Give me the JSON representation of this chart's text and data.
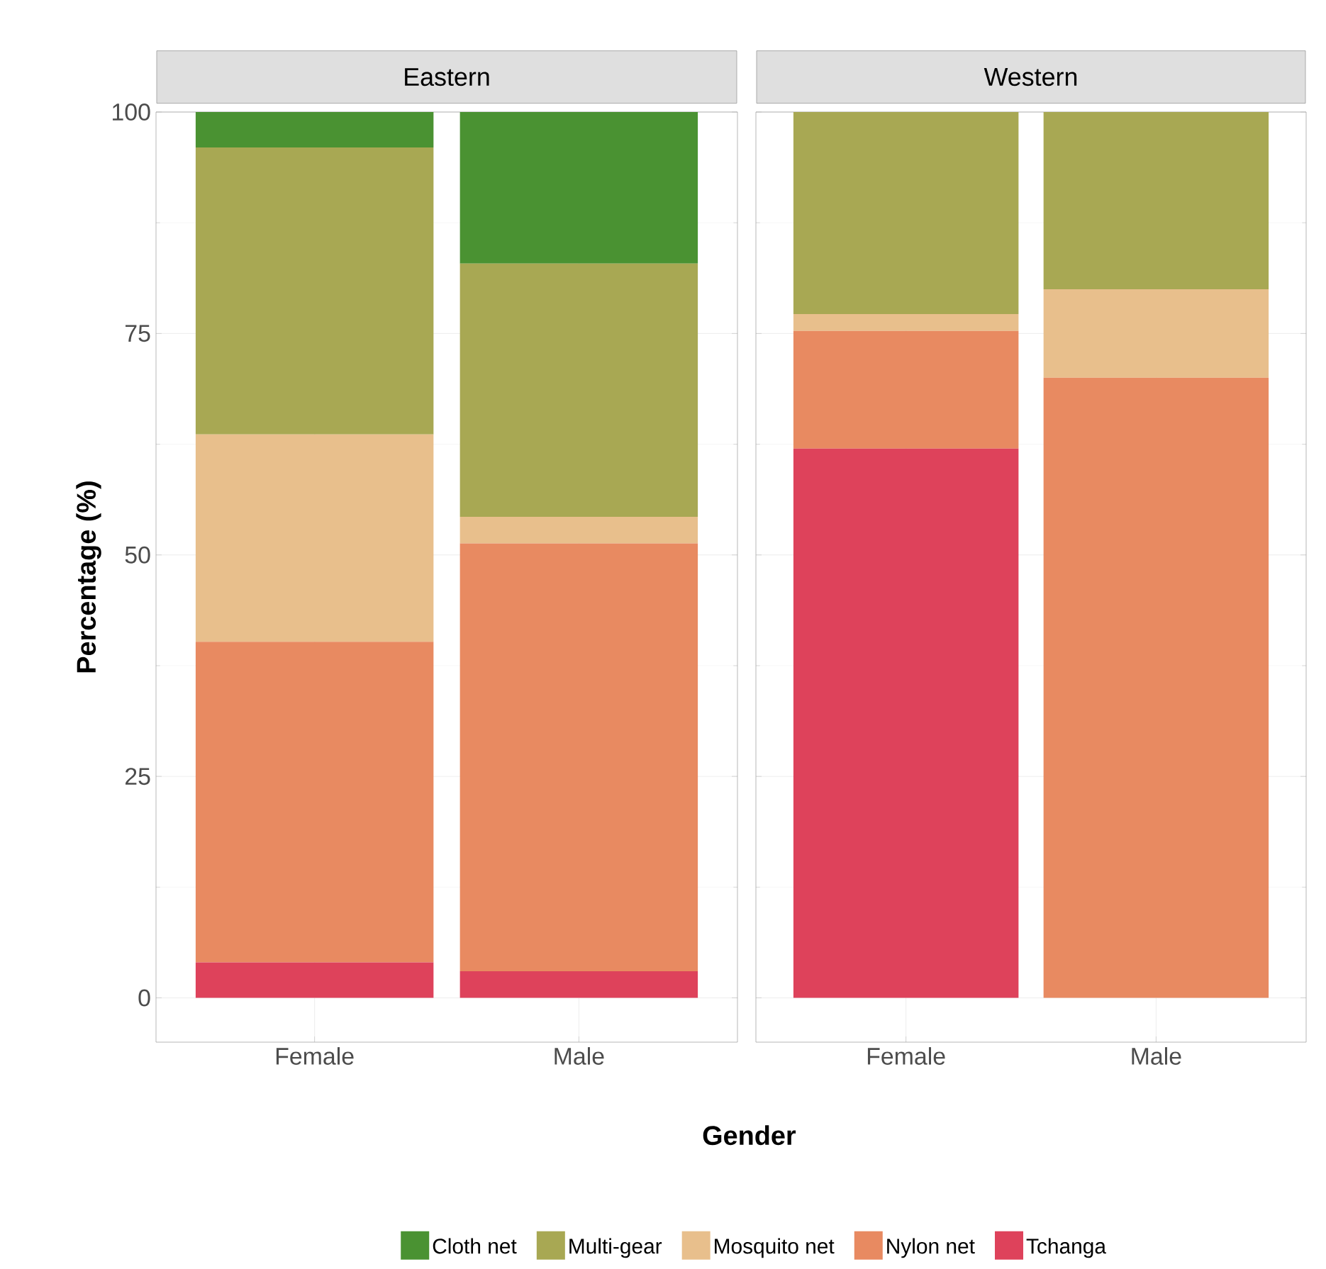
{
  "chart_data": [
    {
      "type": "bar",
      "stacked": true,
      "title": "Eastern",
      "xlabel": "Gender",
      "ylabel": "Percentage (%)",
      "categories": [
        "Female",
        "Male"
      ],
      "ylim": [
        0,
        100
      ],
      "yticks": [
        0,
        25,
        50,
        75,
        100
      ],
      "grid": true,
      "legend": "bottom",
      "series": [
        {
          "name": "Tchanga",
          "color": "#de425b",
          "values": [
            4,
            3
          ]
        },
        {
          "name": "Nylon net",
          "color": "#e88a61",
          "values": [
            36.2,
            48.3
          ]
        },
        {
          "name": "Mosquito net",
          "color": "#e8bf8c",
          "values": [
            23.4,
            3
          ]
        },
        {
          "name": "Multi-gear",
          "color": "#a8a853",
          "values": [
            32.4,
            28.6
          ]
        },
        {
          "name": "Cloth net",
          "color": "#4a9232",
          "values": [
            4,
            17.1
          ]
        }
      ]
    },
    {
      "type": "bar",
      "stacked": true,
      "title": "Western",
      "categories": [
        "Female",
        "Male"
      ],
      "ylim": [
        0,
        100
      ],
      "yticks": [
        0,
        25,
        50,
        75,
        100
      ],
      "grid": true,
      "tick_labels": "x",
      "series": [
        {
          "color": "#de425b",
          "values": [
            62,
            0
          ]
        },
        {
          "color": "#e88a61",
          "values": [
            13.3,
            70
          ]
        },
        {
          "color": "#e8bf8c",
          "values": [
            1.9,
            10
          ]
        },
        {
          "color": "#a8a853",
          "values": [
            22.8,
            20
          ]
        },
        {
          "color": "#4a9232",
          "values": [
            0,
            0
          ]
        }
      ]
    }
  ]
}
